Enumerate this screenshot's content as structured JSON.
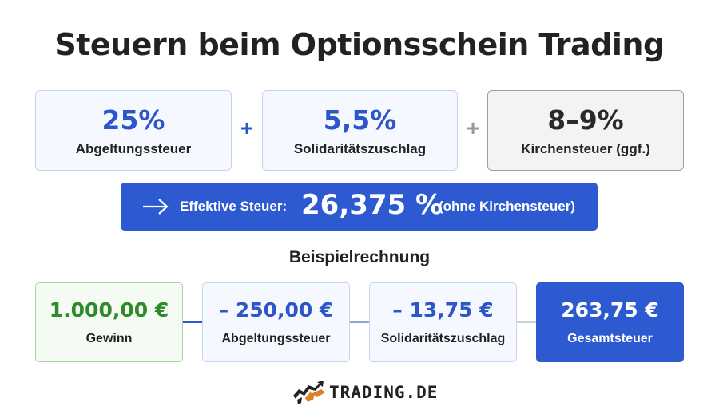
{
  "title": "Steuern beim Optionsschein Trading",
  "rates": [
    {
      "value": "25%",
      "label": "Abgeltungssteuer"
    },
    {
      "value": "5,5%",
      "label": "Solidaritätszuschlag"
    },
    {
      "value": "8–9%",
      "label": "Kirchensteuer (ggf.)"
    }
  ],
  "operators": [
    "+",
    "+"
  ],
  "effective": {
    "label": "Effektive Steuer:",
    "value": "26,375 %",
    "note": "(ohne Kirchensteuer)"
  },
  "example": {
    "title": "Beispielrechnung",
    "items": [
      {
        "value": "1.000,00 €",
        "label": "Gewinn"
      },
      {
        "value": "– 250,00 €",
        "label": "Abgeltungssteuer"
      },
      {
        "value": "– 13,75 €",
        "label": "Solidaritätszuschlag"
      },
      {
        "value": "263,75 €",
        "label": "Gesamtsteuer"
      }
    ]
  },
  "logo": {
    "text": "TRADING.DE",
    "icon": "bull-icon"
  },
  "colors": {
    "accent_blue": "#2e5ad1",
    "green": "#2f8a2a",
    "logo_orange": "#d9822b"
  }
}
